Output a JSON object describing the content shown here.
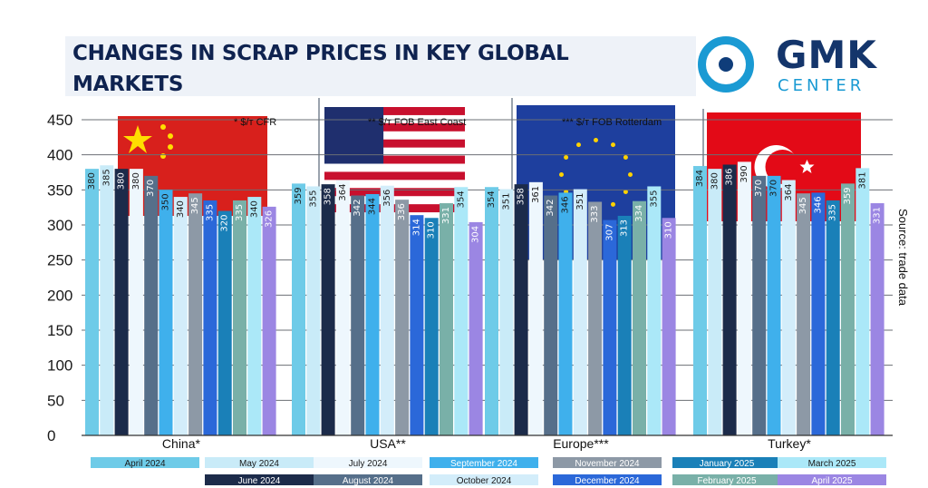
{
  "title": "CHANGES IN SCRAP PRICES IN KEY GLOBAL MARKETS",
  "logo": {
    "word": "GMK",
    "sub": "CENTER"
  },
  "source_note": "Source: trade data",
  "chart_data": {
    "type": "bar",
    "ylim": [
      0,
      450
    ],
    "y_ticks": [
      "0",
      "50",
      "100",
      "150",
      "200",
      "250",
      "300",
      "350",
      "400",
      "450"
    ],
    "grid": true,
    "legend_position": "bottom",
    "groups": [
      {
        "label": "China*",
        "note": "* $/т CFR",
        "flag": "china"
      },
      {
        "label": "USA**",
        "note": "** $/т  FOB East Coast",
        "flag": "usa"
      },
      {
        "label": "Europe***",
        "note": "*** $/т FOB Rotterdam",
        "flag": "eu"
      },
      {
        "label": "Turkey*",
        "note": "",
        "flag": "turkey"
      }
    ],
    "series": [
      {
        "name": "April 2024",
        "color": "#6ecbe8",
        "values": [
          380,
          359,
          354,
          384
        ]
      },
      {
        "name": "May 2024",
        "color": "#c9ebf8",
        "values": [
          385,
          355,
          351,
          380
        ]
      },
      {
        "name": "June 2024",
        "color": "#1c2b4a",
        "values": [
          380,
          358,
          358,
          386
        ]
      },
      {
        "name": "July 2024",
        "color": "#eef7fd",
        "values": [
          380,
          364,
          361,
          390
        ]
      },
      {
        "name": "August 2024",
        "color": "#566f8a",
        "values": [
          370,
          342,
          342,
          370
        ]
      },
      {
        "name": "September 2024",
        "color": "#3fb0ec",
        "values": [
          350,
          344,
          346,
          370
        ]
      },
      {
        "name": "October 2024",
        "color": "#d3edfa",
        "values": [
          340,
          356,
          351,
          364
        ]
      },
      {
        "name": "November 2024",
        "color": "#8d99a6",
        "values": [
          345,
          336,
          333,
          345
        ]
      },
      {
        "name": "December 2024",
        "color": "#2b68d9",
        "values": [
          335,
          314,
          307,
          346
        ]
      },
      {
        "name": "January 2025",
        "color": "#1a80b8",
        "values": [
          320,
          310,
          313,
          335
        ]
      },
      {
        "name": "February 2025",
        "color": "#79b0a8",
        "values": [
          335,
          331,
          334,
          359
        ]
      },
      {
        "name": "March 2025",
        "color": "#abe8f8",
        "values": [
          340,
          354,
          355,
          381
        ]
      },
      {
        "name": "April 2025",
        "color": "#9b86e3",
        "values": [
          326,
          304,
          310,
          331
        ]
      }
    ]
  },
  "legend_rows": [
    [
      "April 2024",
      "May 2024",
      "July 2024",
      "September 2024",
      "November 2024",
      "January 2025",
      "March 2025"
    ],
    [
      "June 2024",
      "August 2024",
      "October 2024",
      "December 2024",
      "February 2025",
      "April 2025"
    ]
  ]
}
